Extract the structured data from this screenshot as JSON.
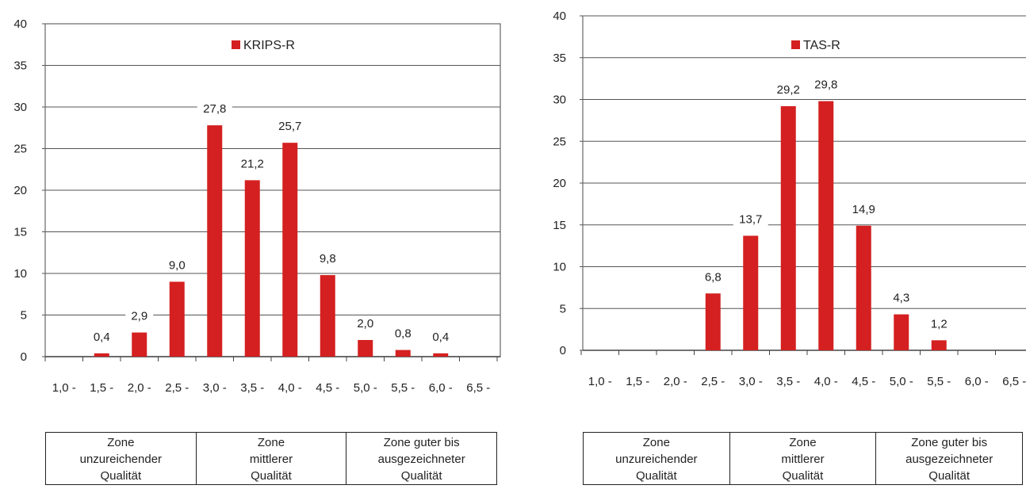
{
  "chart_data": [
    {
      "type": "bar",
      "legend": "KRIPS-R",
      "legend_position": "top-center",
      "categories": [
        "1,0 -",
        "1,5 -",
        "2,0 -",
        "2,5 -",
        "3,0 -",
        "3,5 -",
        "4,0 -",
        "4,5 -",
        "5,0 -",
        "5,5 -",
        "6,0 -",
        "6,5 -"
      ],
      "values": [
        null,
        0.4,
        2.9,
        9.0,
        27.8,
        21.2,
        25.7,
        9.8,
        2.0,
        0.8,
        0.4,
        null
      ],
      "value_labels": [
        "",
        "0,4",
        "2,9",
        "9,0",
        "27,8",
        "21,2",
        "25,7",
        "9,8",
        "2,0",
        "0,8",
        "0,4",
        ""
      ],
      "ylim": [
        0,
        40
      ],
      "yticks": [
        "0",
        "5",
        "10",
        "15",
        "20",
        "25",
        "30",
        "35",
        "40"
      ],
      "grid": true,
      "bar_color": "#d42020",
      "zones": [
        "Zone\nunzureichender\nQualität",
        "Zone\nmittlerer\nQualität",
        "Zone guter bis\nausgezeichneter\nQualität"
      ]
    },
    {
      "type": "bar",
      "legend": "TAS-R",
      "legend_position": "top-center",
      "categories": [
        "1,0 -",
        "1,5 -",
        "2,0 -",
        "2,5 -",
        "3,0 -",
        "3,5 -",
        "4,0 -",
        "4,5 -",
        "5,0 -",
        "5,5 -",
        "6,0 -",
        "6,5 -"
      ],
      "values": [
        null,
        null,
        null,
        6.8,
        13.7,
        29.2,
        29.8,
        14.9,
        4.3,
        1.2,
        null,
        null
      ],
      "value_labels": [
        "",
        "",
        "",
        "6,8",
        "13,7",
        "29,2",
        "29,8",
        "14,9",
        "4,3",
        "1,2",
        "",
        ""
      ],
      "ylim": [
        0,
        40
      ],
      "yticks": [
        "0",
        "5",
        "10",
        "15",
        "20",
        "25",
        "30",
        "35",
        "40"
      ],
      "grid": true,
      "bar_color": "#d42020",
      "zones": [
        "Zone\nunzureichender\nQualität",
        "Zone\nmittlerer\nQualität",
        "Zone guter bis\nausgezeichneter\nQualität"
      ]
    }
  ]
}
